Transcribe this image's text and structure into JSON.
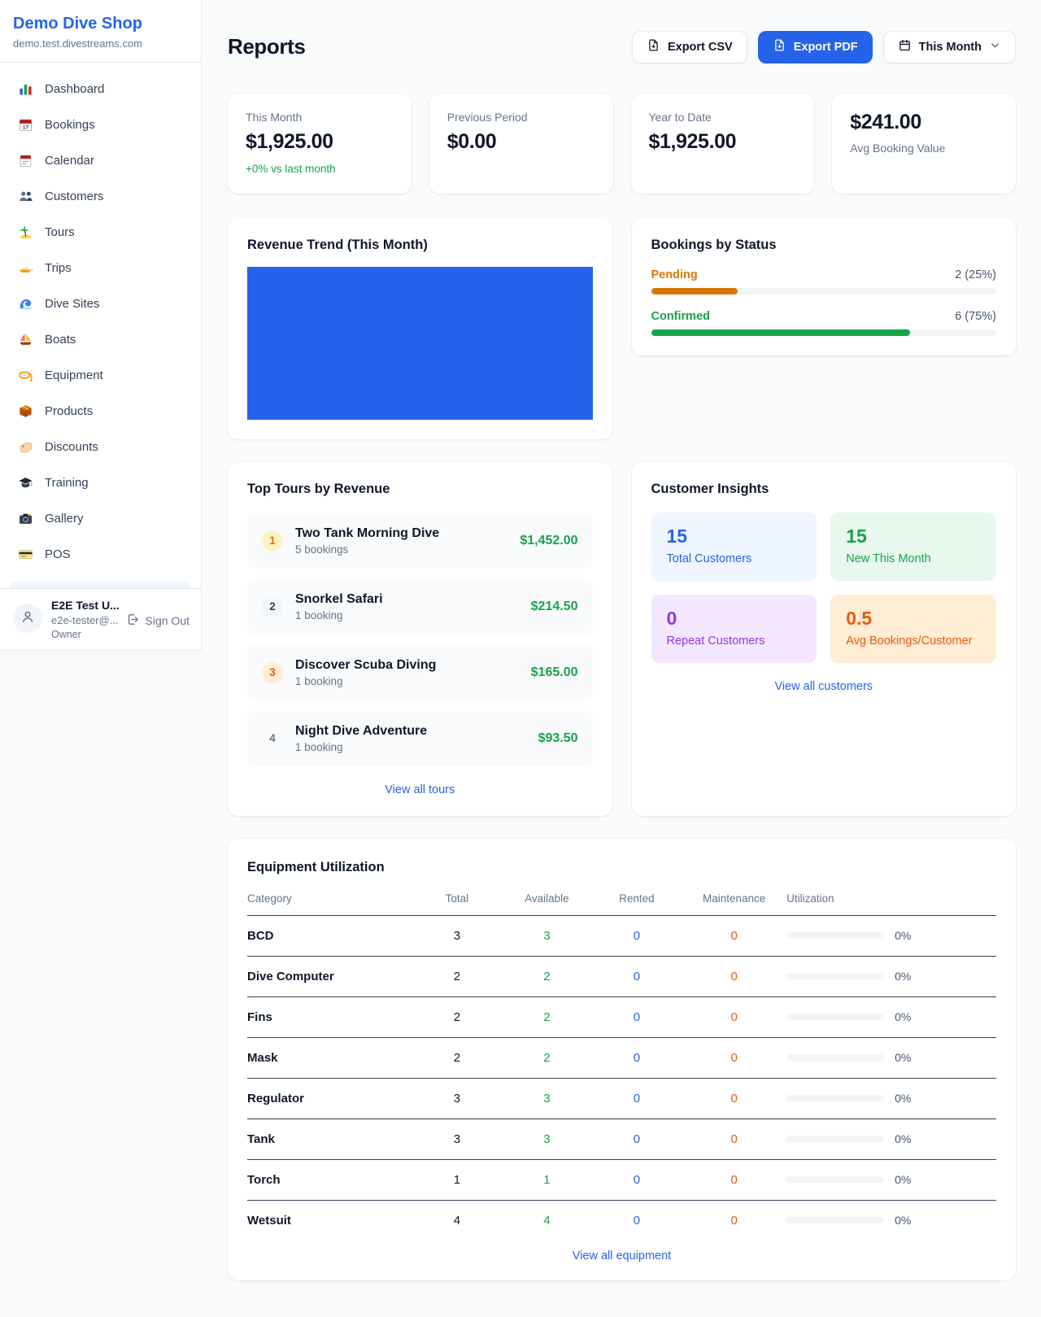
{
  "brand": {
    "name": "Demo Dive Shop",
    "subdomain": "demo.test.divestreams.com"
  },
  "sidebar": {
    "items": [
      {
        "label": "Dashboard",
        "icon": "bar-chart-icon"
      },
      {
        "label": "Bookings",
        "icon": "calendar-date-icon"
      },
      {
        "label": "Calendar",
        "icon": "notepad-calendar-icon"
      },
      {
        "label": "Customers",
        "icon": "people-icon"
      },
      {
        "label": "Tours",
        "icon": "island-icon"
      },
      {
        "label": "Trips",
        "icon": "speedboat-icon"
      },
      {
        "label": "Dive Sites",
        "icon": "wave-icon"
      },
      {
        "label": "Boats",
        "icon": "sailboat-icon"
      },
      {
        "label": "Equipment",
        "icon": "dive-mask-icon"
      },
      {
        "label": "Products",
        "icon": "package-icon"
      },
      {
        "label": "Discounts",
        "icon": "tag-icon"
      },
      {
        "label": "Training",
        "icon": "graduation-cap-icon"
      },
      {
        "label": "Gallery",
        "icon": "camera-icon"
      },
      {
        "label": "POS",
        "icon": "credit-card-icon"
      }
    ],
    "user": {
      "name": "E2E Test U...",
      "email": "e2e-tester@...",
      "role": "Owner",
      "sign_out_label": "Sign Out",
      "avatar_icon": "person-icon",
      "sign_out_icon": "logout-icon"
    }
  },
  "header": {
    "title": "Reports",
    "export_csv_label": "Export CSV",
    "export_pdf_label": "Export PDF",
    "period_selector": "This Month",
    "export_icon": "file-arrow-down-icon",
    "period_icon": "calendar-icon",
    "chevron_icon": "chevron-down-icon"
  },
  "stat_cards": [
    {
      "label": "This Month",
      "value": "$1,925.00",
      "delta": "+0% vs last month"
    },
    {
      "label": "Previous Period",
      "value": "$0.00"
    },
    {
      "label": "Year to Date",
      "value": "$1,925.00"
    },
    {
      "label": "Avg Booking Value",
      "value": "$241.00"
    }
  ],
  "revenue_trend": {
    "title": "Revenue Trend (This Month)"
  },
  "chart_data": {
    "type": "bar",
    "title": "Revenue Trend (This Month)",
    "categories": [
      "This Month"
    ],
    "values": [
      1925
    ],
    "color": "#2563eb",
    "note": "single solid bar fills the entire plot area; no axes, gridlines or labels visible"
  },
  "bookings_by_status": {
    "title": "Bookings by Status",
    "rows": [
      {
        "label": "Pending",
        "value": "2 (25%)",
        "count": 2,
        "pct": 25,
        "color": "#d97706"
      },
      {
        "label": "Confirmed",
        "value": "6 (75%)",
        "count": 6,
        "pct": 75,
        "color": "#16a34a"
      }
    ]
  },
  "top_tours": {
    "title": "Top Tours by Revenue",
    "rows": [
      {
        "rank": "1",
        "name": "Two Tank Morning Dive",
        "bookings": "5 bookings",
        "revenue": "$1,452.00"
      },
      {
        "rank": "2",
        "name": "Snorkel Safari",
        "bookings": "1 booking",
        "revenue": "$214.50"
      },
      {
        "rank": "3",
        "name": "Discover Scuba Diving",
        "bookings": "1 booking",
        "revenue": "$165.00"
      },
      {
        "rank": "4",
        "name": "Night Dive Adventure",
        "bookings": "1 booking",
        "revenue": "$93.50"
      }
    ],
    "view_all_label": "View all tours"
  },
  "customer_insights": {
    "title": "Customer Insights",
    "tiles": [
      {
        "value": "15",
        "label": "Total Customers",
        "color": "#2563eb",
        "bg": "#eff6ff"
      },
      {
        "value": "15",
        "label": "New This Month",
        "color": "#16a34a",
        "bg": "#e8f8ee"
      },
      {
        "value": "0",
        "label": "Repeat Customers",
        "color": "#9333ea",
        "bg": "#f3e8ff"
      },
      {
        "value": "0.5",
        "label": "Avg Bookings/Customer",
        "color": "#ea580c",
        "bg": "#ffedd5"
      }
    ],
    "view_all_label": "View all customers"
  },
  "equipment_utilization": {
    "title": "Equipment Utilization",
    "columns": [
      "Category",
      "Total",
      "Available",
      "Rented",
      "Maintenance",
      "Utilization"
    ],
    "rows": [
      {
        "category": "BCD",
        "total": "3",
        "available": "3",
        "rented": "0",
        "maintenance": "0",
        "utilization": "0%",
        "utilization_pct": 0
      },
      {
        "category": "Dive Computer",
        "total": "2",
        "available": "2",
        "rented": "0",
        "maintenance": "0",
        "utilization": "0%",
        "utilization_pct": 0
      },
      {
        "category": "Fins",
        "total": "2",
        "available": "2",
        "rented": "0",
        "maintenance": "0",
        "utilization": "0%",
        "utilization_pct": 0
      },
      {
        "category": "Mask",
        "total": "2",
        "available": "2",
        "rented": "0",
        "maintenance": "0",
        "utilization": "0%",
        "utilization_pct": 0
      },
      {
        "category": "Regulator",
        "total": "3",
        "available": "3",
        "rented": "0",
        "maintenance": "0",
        "utilization": "0%",
        "utilization_pct": 0
      },
      {
        "category": "Tank",
        "total": "3",
        "available": "3",
        "rented": "0",
        "maintenance": "0",
        "utilization": "0%",
        "utilization_pct": 0
      },
      {
        "category": "Torch",
        "total": "1",
        "available": "1",
        "rented": "0",
        "maintenance": "0",
        "utilization": "0%",
        "utilization_pct": 0
      },
      {
        "category": "Wetsuit",
        "total": "4",
        "available": "4",
        "rented": "0",
        "maintenance": "0",
        "utilization": "0%",
        "utilization_pct": 0
      }
    ],
    "view_all_label": "View all equipment"
  },
  "colors": {
    "accent": "#2563eb",
    "positive": "#16a34a",
    "pending": "#d97706",
    "maintenance": "#ea580c",
    "background": "#f8fafc"
  }
}
